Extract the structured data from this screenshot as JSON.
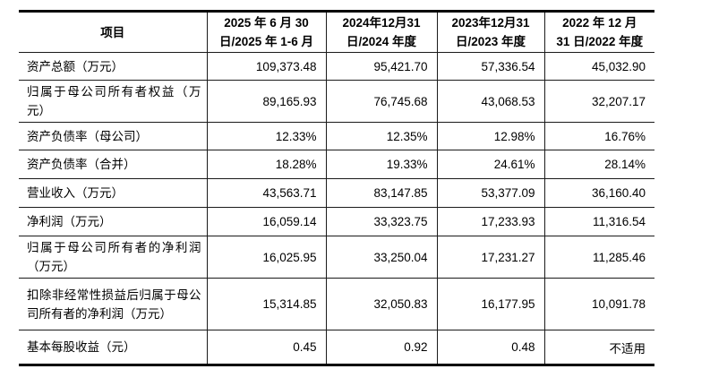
{
  "table": {
    "name": "financial-summary-table",
    "columns": [
      {
        "label": "项目"
      },
      {
        "label": "2025 年 6 月 30\n日/2025 年 1-6 月"
      },
      {
        "label": "2024年12月31\n日/2024 年度"
      },
      {
        "label": "2023年12月31\n日/2023 年度"
      },
      {
        "label": "2022 年 12 月\n31 日/2022 年度"
      }
    ],
    "rows": [
      {
        "label": "资产总额（万元）",
        "values": [
          "109,373.48",
          "95,421.70",
          "57,336.54",
          "45,032.90"
        ]
      },
      {
        "label": "归属于母公司所有者权益（万元）",
        "values": [
          "89,165.93",
          "76,745.68",
          "43,068.53",
          "32,207.17"
        ]
      },
      {
        "label": "资产负债率（母公司）",
        "values": [
          "12.33%",
          "12.35%",
          "12.98%",
          "16.76%"
        ]
      },
      {
        "label": "资产负债率（合并）",
        "values": [
          "18.28%",
          "19.33%",
          "24.61%",
          "28.14%"
        ]
      },
      {
        "label": "营业收入（万元）",
        "values": [
          "43,563.71",
          "83,147.85",
          "53,377.09",
          "36,160.40"
        ]
      },
      {
        "label": "净利润（万元）",
        "values": [
          "16,059.14",
          "33,323.75",
          "17,233.93",
          "11,316.54"
        ]
      },
      {
        "label": "归属于母公司所有者的净利润（万元）",
        "values": [
          "16,025.95",
          "33,250.04",
          "17,231.27",
          "11,285.46"
        ]
      },
      {
        "label": "扣除非经常性损益后归属于母公司所有者的净利润（万元）",
        "values": [
          "15,314.85",
          "32,050.83",
          "16,177.95",
          "10,091.78"
        ]
      },
      {
        "label": "基本每股收益（元）",
        "values": [
          "0.45",
          "0.92",
          "0.48",
          "不适用"
        ]
      }
    ],
    "text_color": "#000000",
    "border_color": "#000000",
    "background_color": "#ffffff"
  }
}
